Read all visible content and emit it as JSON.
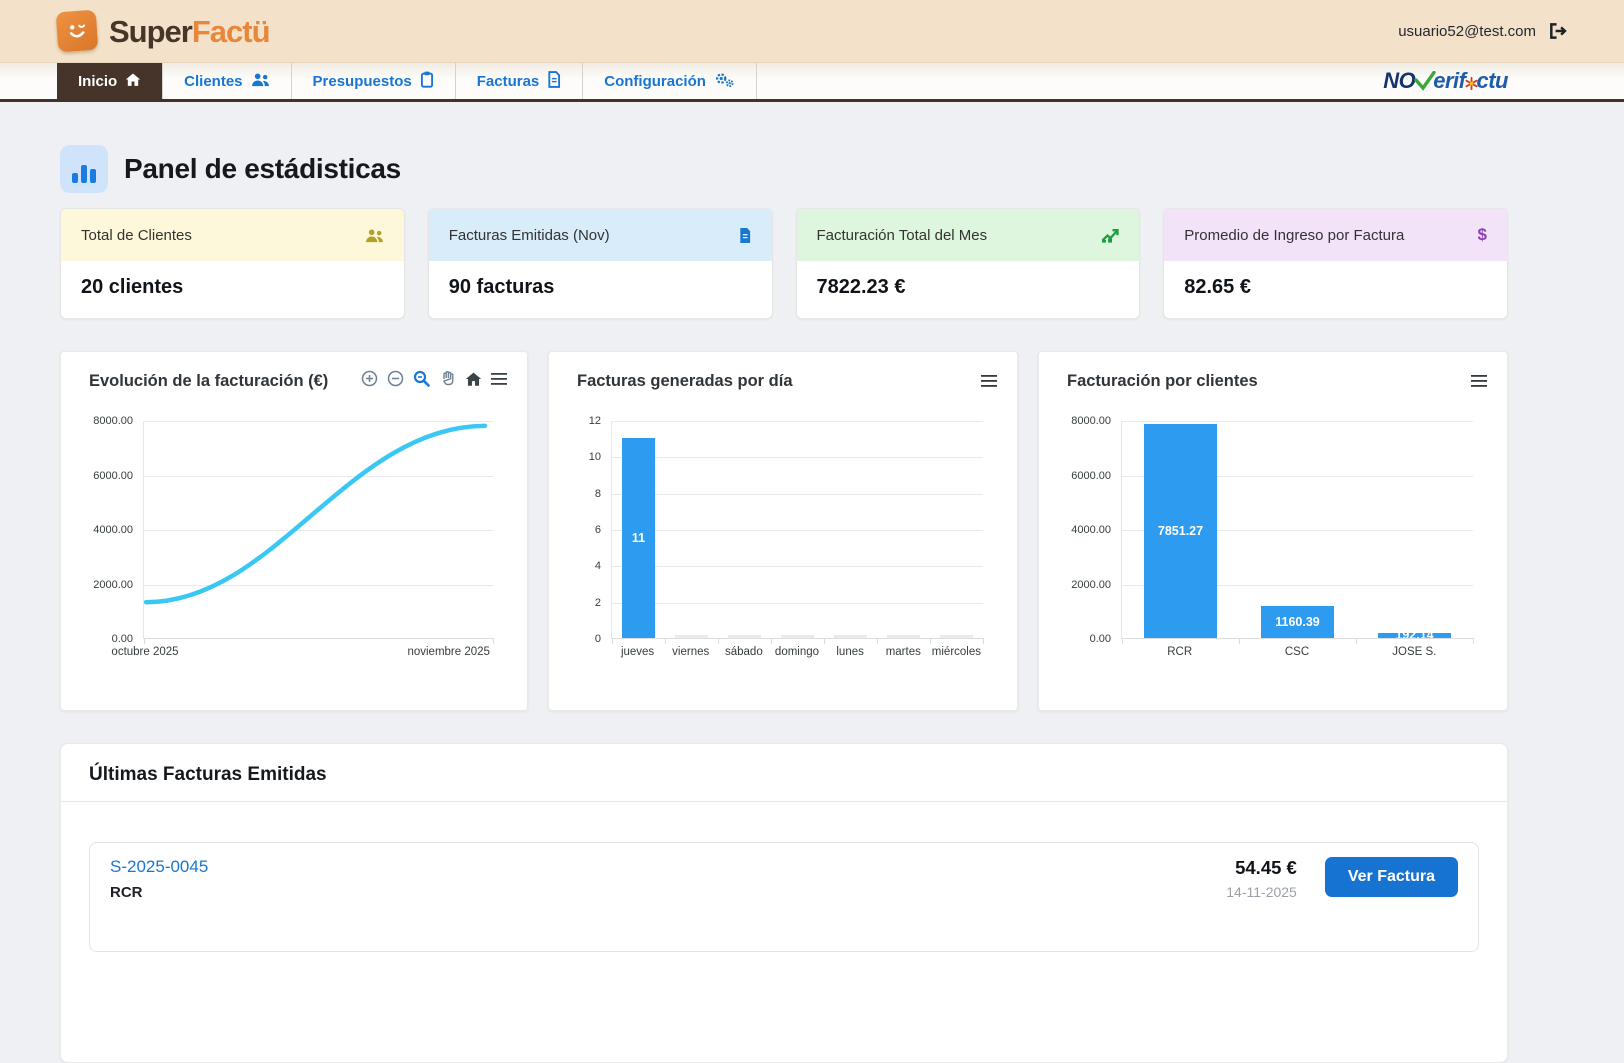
{
  "header": {
    "brand_super": "Super",
    "brand_factu": "Factü",
    "user_email": "usuario52@test.com",
    "logout_icon": "logout-icon"
  },
  "nav": {
    "items": [
      {
        "label": "Inicio",
        "icon": "home-icon",
        "active": true
      },
      {
        "label": "Clientes",
        "icon": "users-icon",
        "active": false
      },
      {
        "label": "Presupuestos",
        "icon": "clipboard-icon",
        "active": false
      },
      {
        "label": "Facturas",
        "icon": "file-icon",
        "active": false
      },
      {
        "label": "Configuración",
        "icon": "gears-icon",
        "active": false
      }
    ],
    "brand": {
      "no": "NO",
      "erif": "erif",
      "ctu": "ctu"
    }
  },
  "page": {
    "title": "Panel de estádisticas",
    "title_icon": "bar-chart-icon"
  },
  "stats": [
    {
      "label": "Total de Clientes",
      "value": "20 clientes",
      "icon": "users-icon",
      "header_bg": "#fcf8d9",
      "icon_color": "#b3a028"
    },
    {
      "label": "Facturas Emitidas (Nov)",
      "value": "90 facturas",
      "icon": "file-icon",
      "header_bg": "#d8ecfa",
      "icon_color": "#1a78d2"
    },
    {
      "label": "Facturación Total del Mes",
      "value": "7822.23 €",
      "icon": "trend-up-icon",
      "header_bg": "#def6de",
      "icon_color": "#1e9e40"
    },
    {
      "label": "Promedio de Ingreso por Factura",
      "value": "82.65 €",
      "icon": "dollar-icon",
      "header_bg": "#f2e3f9",
      "icon_color": "#8e3fb5"
    }
  ],
  "chart_data": [
    {
      "type": "line",
      "title": "Evolución de la facturación (€)",
      "x": [
        "octubre 2025",
        "noviembre 2025"
      ],
      "series": [
        {
          "name": "Facturación",
          "values": [
            1350,
            7822.23
          ]
        }
      ],
      "ylim": [
        0,
        8000
      ],
      "yticks": [
        "8000.00",
        "6000.00",
        "4000.00",
        "2000.00",
        "0.00"
      ],
      "line_color": "#39c7f3",
      "grid": true,
      "legend": "none",
      "toolbar": [
        "zoom-in-icon",
        "zoom-out-icon",
        "selection-zoom-icon",
        "pan-icon",
        "home-icon",
        "menu-icon"
      ]
    },
    {
      "type": "bar",
      "title": "Facturas generadas por día",
      "categories": [
        "jueves",
        "viernes",
        "sábado",
        "domingo",
        "lunes",
        "martes",
        "miércoles"
      ],
      "values": [
        11,
        0,
        0,
        0,
        0,
        0,
        0
      ],
      "data_labels": [
        "11",
        "",
        "",
        "",
        "",
        "",
        ""
      ],
      "ylim": [
        0,
        12
      ],
      "yticks": [
        "12",
        "10",
        "8",
        "6",
        "4",
        "2",
        "0"
      ],
      "bar_color": "#2d9bf0",
      "grid": true,
      "legend": "none"
    },
    {
      "type": "bar",
      "title": "Facturación por clientes",
      "categories": [
        "RCR",
        "CSC",
        "JOSE S."
      ],
      "values": [
        7851.27,
        1160.39,
        192.14
      ],
      "data_labels": [
        "7851.27",
        "1160.39",
        "192.14"
      ],
      "ylim": [
        0,
        8000
      ],
      "yticks": [
        "8000.00",
        "6000.00",
        "4000.00",
        "2000.00",
        "0.00"
      ],
      "bar_color": "#2d9bf0",
      "grid": true,
      "legend": "none"
    }
  ],
  "invoices": {
    "title": "Últimas Facturas Emitidas",
    "rows": [
      {
        "number": "S-2025-0045",
        "client": "RCR",
        "amount": "54.45 €",
        "date": "14-11-2025",
        "action": "Ver Factura"
      }
    ]
  }
}
